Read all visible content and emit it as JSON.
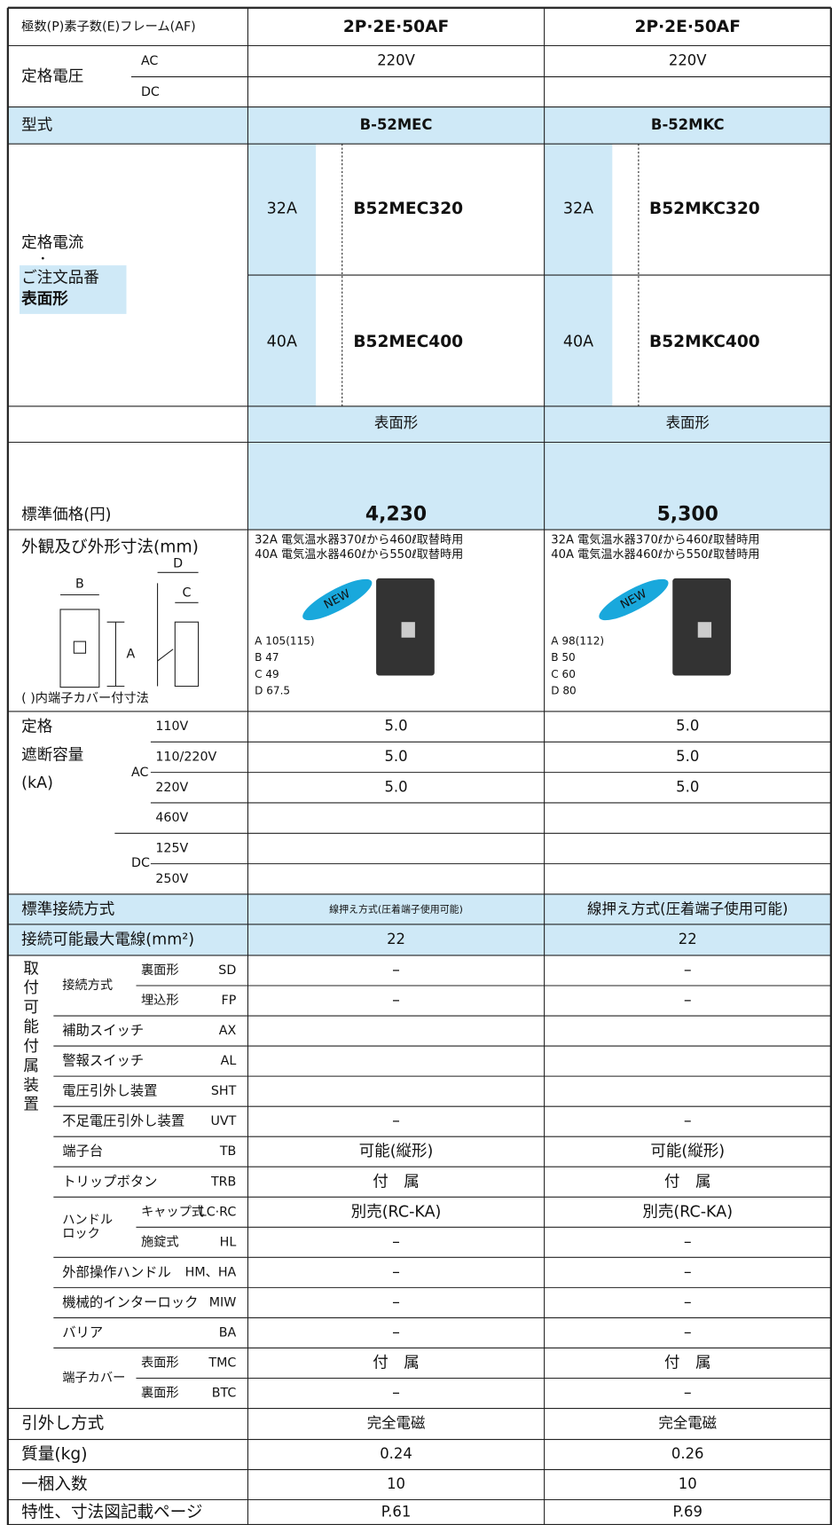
{
  "header": {
    "label": "極数(P)素子数(E)フレーム(AF)",
    "columns": [
      "2P·2E·50AF",
      "2P·2E·50AF"
    ]
  },
  "rated_voltage": {
    "label": "定格電圧",
    "ac": "AC",
    "dc": "DC",
    "values": [
      "220V",
      "220V"
    ]
  },
  "model": {
    "label": "型式",
    "values": [
      "B-52MEC",
      "B-52MKC"
    ]
  },
  "rated_current": {
    "label": "定格電流",
    "dot": "・",
    "order_label": "ご注文品番",
    "mount_label": "表面形",
    "columns": [
      [
        {
          "current": "32A",
          "order": "B52MEC320"
        },
        {
          "current": "40A",
          "order": "B52MEC400"
        }
      ],
      [
        {
          "current": "32A",
          "order": "B52MKC320"
        },
        {
          "current": "40A",
          "order": "B52MKC400"
        }
      ]
    ]
  },
  "mount": {
    "values": [
      "表面形",
      "表面形"
    ]
  },
  "price": {
    "label": "標準価格(円)",
    "values": [
      "4,230",
      "5,300"
    ]
  },
  "dimensions": {
    "label": "外観及び外形寸法(mm)",
    "diagram": {
      "b": "B",
      "a": "A",
      "d": "D",
      "c": "C"
    },
    "note": "( )内端子カバー付寸法",
    "columns": [
      {
        "uses": [
          "32A 電気温水器370ℓから460ℓ取替時用",
          "40A 電気温水器460ℓから550ℓ取替時用"
        ],
        "badge": "NEW",
        "dims": [
          "A 105(115)",
          "B 47",
          "C 49",
          "D 67.5"
        ]
      },
      {
        "uses": [
          "32A 電気温水器370ℓから460ℓ取替時用",
          "40A 電気温水器460ℓから550ℓ取替時用"
        ],
        "badge": "NEW",
        "dims": [
          "A 98(112)",
          "B 50",
          "C 60",
          "D 80"
        ]
      }
    ]
  },
  "breaking_capacity": {
    "label": [
      "定格",
      "遮断容量",
      "(kA)"
    ],
    "ac": "AC",
    "dc": "DC",
    "rows": [
      {
        "voltage": "110V",
        "values": [
          "5.0",
          "5.0"
        ]
      },
      {
        "voltage": "110/220V",
        "values": [
          "5.0",
          "5.0"
        ]
      },
      {
        "voltage": "220V",
        "values": [
          "5.0",
          "5.0"
        ]
      },
      {
        "voltage": "460V"
      },
      {
        "voltage": "125V"
      },
      {
        "voltage": "250V"
      }
    ]
  },
  "connection": {
    "label": "標準接続方式",
    "values": [
      "線押え方式(圧着端子使用可能)",
      "線押え方式(圧着端子使用可能)"
    ]
  },
  "max_wire": {
    "label": "接続可能最大電線(mm²)",
    "values": [
      "22",
      "22"
    ]
  },
  "accessories": {
    "label": "取付可能付属装置",
    "items": [
      {
        "group": [
          "接続方式"
        ],
        "items": [
          {
            "name": "裏面形",
            "code": "SD",
            "values": [
              "–",
              "–"
            ]
          },
          {
            "name": "埋込形",
            "code": "FP",
            "values": [
              "–",
              "–"
            ]
          }
        ]
      },
      {
        "name": "補助スイッチ",
        "code": "AX"
      },
      {
        "name": "警報スイッチ",
        "code": "AL"
      },
      {
        "name": "電圧引外し装置",
        "code": "SHT"
      },
      {
        "name": "不足電圧引外し装置",
        "code": "UVT",
        "values": [
          "–",
          "–"
        ]
      },
      {
        "name": "端子台",
        "code": "TB",
        "values": [
          "可能(縦形)",
          "可能(縦形)"
        ]
      },
      {
        "name": "トリップボタン",
        "code": "TRB",
        "values": [
          "付　属",
          "付　属"
        ]
      },
      {
        "group": [
          "ハンドル",
          "ロック"
        ],
        "items": [
          {
            "name": "キャップ式",
            "code": "LC·RC",
            "values": [
              "別売(RC-KA)",
              "別売(RC-KA)"
            ]
          },
          {
            "name": "施錠式",
            "code": "HL",
            "values": [
              "–",
              "–"
            ]
          }
        ]
      },
      {
        "name": "外部操作ハンドル",
        "code": "HM、HA",
        "values": [
          "–",
          "–"
        ]
      },
      {
        "name": "機械的インターロック",
        "code": "MIW",
        "values": [
          "–",
          "–"
        ]
      },
      {
        "name": "バリア",
        "code": "BA",
        "values": [
          "–",
          "–"
        ]
      },
      {
        "group": [
          "端子カバー"
        ],
        "items": [
          {
            "name": "表面形",
            "code": "TMC",
            "values": [
              "付　属",
              "付　属"
            ]
          },
          {
            "name": "裏面形",
            "code": "BTC",
            "values": [
              "–",
              "–"
            ]
          }
        ]
      }
    ]
  },
  "footer_rows": [
    {
      "label": "引外し方式",
      "values": [
        "完全電磁",
        "完全電磁"
      ]
    },
    {
      "label": "質量(kg)",
      "values": [
        "0.24",
        "0.26"
      ]
    },
    {
      "label": "一梱入数",
      "values": [
        "10",
        "10"
      ]
    },
    {
      "label": "特性、寸法図記載ページ",
      "values": [
        "P.61",
        "P.69"
      ]
    }
  ]
}
